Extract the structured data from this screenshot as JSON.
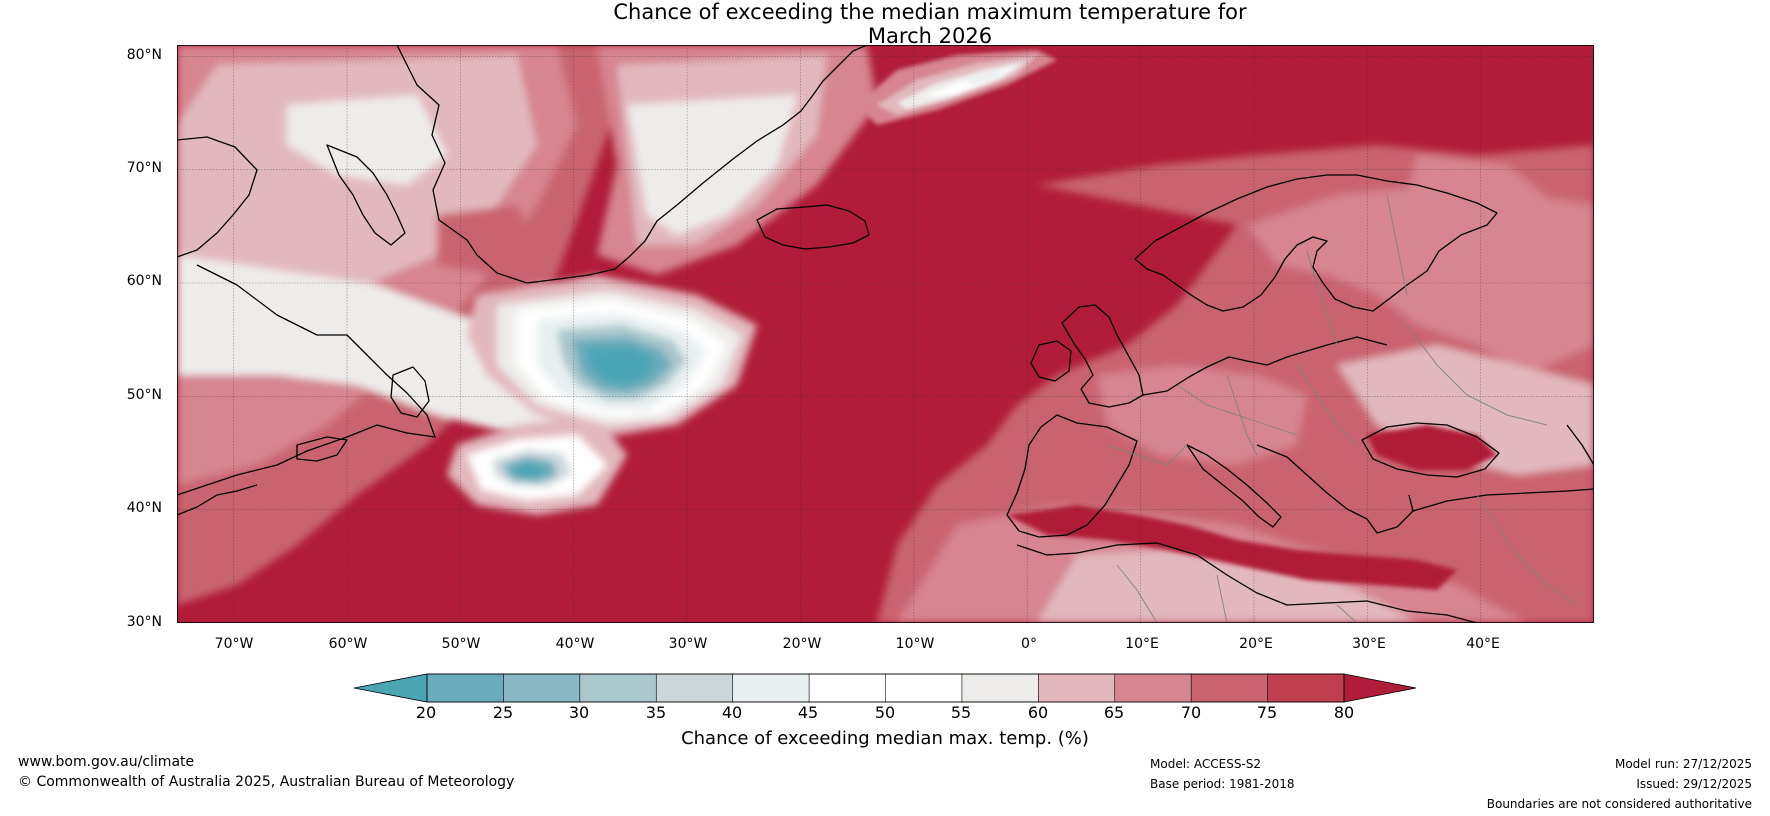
{
  "title": {
    "line1": "Chance of exceeding the median maximum temperature for",
    "line2": "March 2026"
  },
  "map": {
    "latitude_labels": [
      "80°N",
      "70°N",
      "60°N",
      "50°N",
      "40°N",
      "30°N"
    ],
    "longitude_labels": [
      "70°W",
      "60°W",
      "50°W",
      "40°W",
      "30°W",
      "20°W",
      "10°W",
      "0°",
      "10°E",
      "20°E",
      "30°E",
      "40°E"
    ],
    "extent": {
      "lon_min": -75,
      "lon_max": 50,
      "lat_min": 30,
      "lat_max": 81
    },
    "background_color": "#b01c39"
  },
  "colorbar": {
    "title": "Chance of exceeding median max. temp. (%)",
    "ticks": [
      "20",
      "25",
      "30",
      "35",
      "40",
      "45",
      "50",
      "55",
      "60",
      "65",
      "70",
      "75",
      "80"
    ],
    "under_color": "#4ba5b5",
    "over_color": "#b01c39",
    "bin_colors": [
      "#6aacbb",
      "#89b9c4",
      "#aac7cc",
      "#ccd7db",
      "#e8eff1",
      "#ffffff",
      "#ffffff",
      "#eeeceb",
      "#e2b8be",
      "#d68591",
      "#c9636f",
      "#bf3f51"
    ]
  },
  "footer": {
    "website": "www.bom.gov.au/climate",
    "copyright": "© Commonwealth of Australia 2025, Australian Bureau of Meteorology",
    "model": "Model: ACCESS-S2",
    "base_period": "Base period: 1981-2018",
    "model_run": "Model run: 27/12/2025",
    "issued": "Issued: 29/12/2025",
    "disclaimer": "Boundaries are not considered authoritative"
  }
}
